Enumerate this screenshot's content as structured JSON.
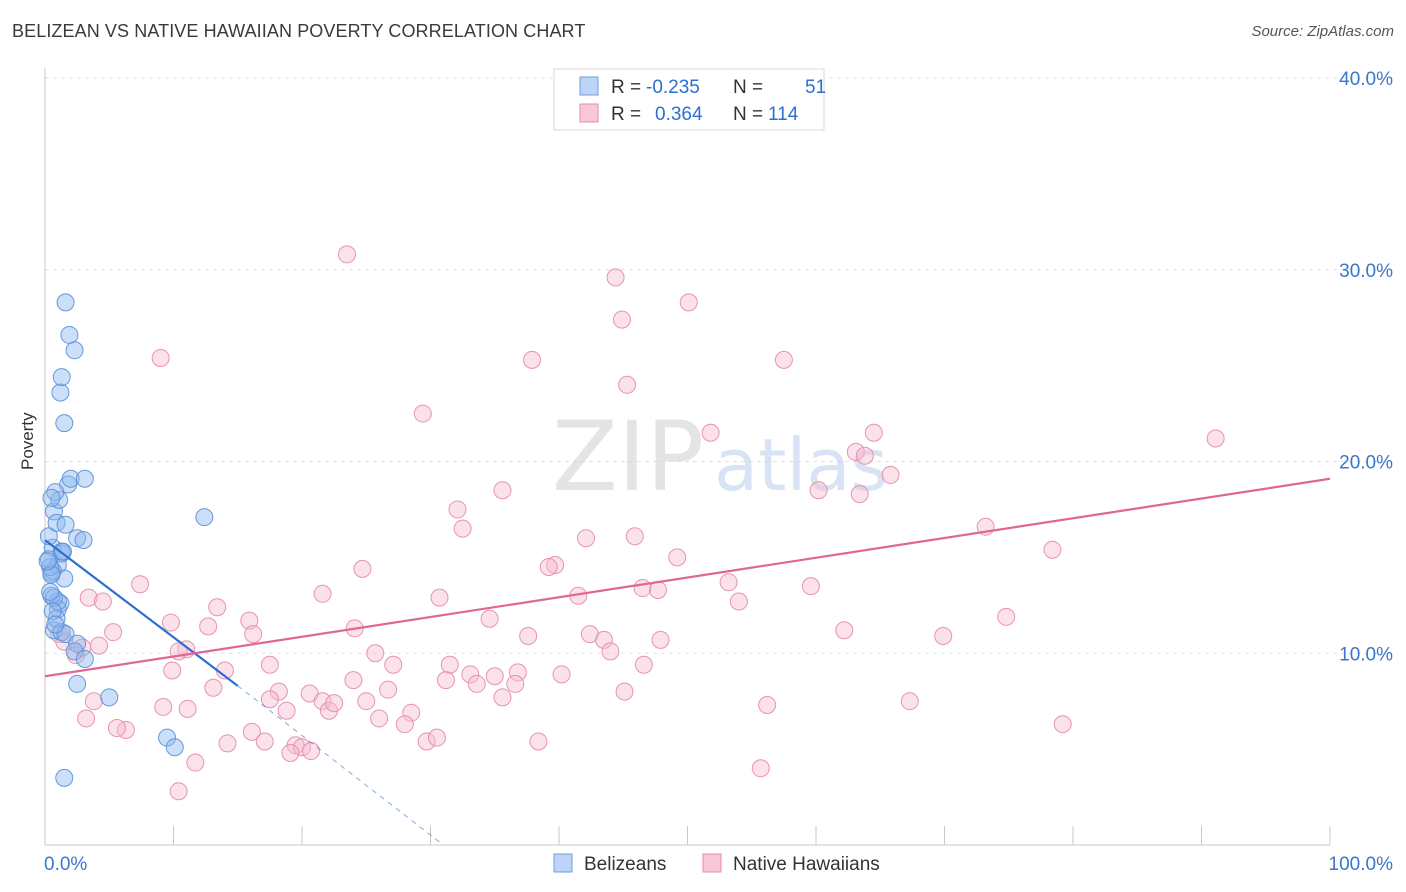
{
  "chart_data": {
    "type": "scatter",
    "title": "BELIZEAN VS NATIVE HAWAIIAN POVERTY CORRELATION CHART",
    "source": "Source: ZipAtlas.com",
    "ylabel": "Poverty",
    "xlabel": "",
    "xlim": [
      0,
      100
    ],
    "ylim": [
      0,
      40
    ],
    "x_tick_labels": [
      "0.0%",
      "100.0%"
    ],
    "y_ticks": [
      10,
      20,
      30,
      40
    ],
    "y_tick_labels": [
      "10.0%",
      "20.0%",
      "30.0%",
      "40.0%"
    ],
    "grid": true,
    "watermark": {
      "part1": "ZIP",
      "part2": "atlas"
    },
    "legend_top": [
      {
        "r_label": "R =",
        "r_value": "-0.235",
        "n_label": "N =",
        "n_value": "51"
      },
      {
        "r_label": "R =",
        "r_value": "0.364",
        "n_label": "N =",
        "n_value": "114"
      }
    ],
    "series": [
      {
        "name": "Belizeans",
        "color": "#8fb9f0",
        "stroke": "#5a8fd6",
        "line_color": "#2d6fd0",
        "trend": {
          "x0": 0,
          "y0": 15.9,
          "x1": 15,
          "y1": 8.3,
          "dash_to_x": 31,
          "dash_to_y": 0
        },
        "points": [
          [
            1.0,
            14.6
          ],
          [
            1.5,
            13.9
          ],
          [
            0.6,
            15.5
          ],
          [
            1.3,
            15.2
          ],
          [
            0.3,
            16.1
          ],
          [
            0.5,
            14.2
          ],
          [
            0.7,
            17.4
          ],
          [
            1.1,
            18.0
          ],
          [
            1.8,
            18.8
          ],
          [
            2.0,
            19.1
          ],
          [
            3.1,
            19.1
          ],
          [
            1.5,
            22.0
          ],
          [
            1.2,
            23.6
          ],
          [
            1.3,
            24.4
          ],
          [
            2.3,
            25.8
          ],
          [
            1.9,
            26.6
          ],
          [
            1.6,
            28.3
          ],
          [
            0.8,
            18.4
          ],
          [
            0.5,
            18.1
          ],
          [
            0.9,
            16.8
          ],
          [
            2.5,
            16.0
          ],
          [
            3.0,
            15.9
          ],
          [
            1.6,
            16.7
          ],
          [
            1.3,
            15.3
          ],
          [
            0.6,
            14.3
          ],
          [
            0.4,
            14.5
          ],
          [
            1.2,
            12.6
          ],
          [
            0.7,
            11.2
          ],
          [
            1.0,
            12.3
          ],
          [
            1.0,
            12.7
          ],
          [
            0.9,
            11.8
          ],
          [
            0.5,
            13.0
          ],
          [
            1.3,
            11.1
          ],
          [
            1.6,
            11.0
          ],
          [
            2.5,
            10.5
          ],
          [
            2.3,
            10.1
          ],
          [
            3.1,
            9.7
          ],
          [
            2.5,
            8.4
          ],
          [
            5.0,
            7.7
          ],
          [
            9.5,
            5.6
          ],
          [
            10.1,
            5.1
          ],
          [
            12.4,
            17.1
          ],
          [
            1.5,
            3.5
          ],
          [
            0.3,
            14.9
          ],
          [
            0.5,
            14.1
          ],
          [
            0.7,
            12.9
          ],
          [
            0.4,
            13.2
          ],
          [
            0.6,
            12.2
          ],
          [
            0.8,
            11.5
          ],
          [
            1.4,
            15.3
          ],
          [
            0.2,
            14.8
          ]
        ]
      },
      {
        "name": "Native Hawaiians",
        "color": "#f6bccf",
        "stroke": "#e48aa8",
        "line_color": "#e0669a",
        "trend": {
          "x0": 0,
          "y0": 8.8,
          "x1": 100,
          "y1": 19.1
        },
        "points": [
          [
            23.5,
            30.8
          ],
          [
            44.4,
            29.6
          ],
          [
            44.9,
            27.4
          ],
          [
            50.1,
            28.3
          ],
          [
            9.0,
            25.4
          ],
          [
            37.9,
            25.3
          ],
          [
            57.5,
            25.3
          ],
          [
            45.3,
            24.0
          ],
          [
            29.4,
            22.5
          ],
          [
            51.8,
            21.5
          ],
          [
            64.5,
            21.5
          ],
          [
            91.1,
            21.2
          ],
          [
            63.1,
            20.5
          ],
          [
            63.8,
            20.3
          ],
          [
            65.8,
            19.3
          ],
          [
            35.6,
            18.5
          ],
          [
            60.2,
            18.5
          ],
          [
            63.4,
            18.3
          ],
          [
            32.1,
            17.5
          ],
          [
            32.5,
            16.5
          ],
          [
            73.2,
            16.6
          ],
          [
            42.1,
            16.0
          ],
          [
            45.9,
            16.1
          ],
          [
            78.4,
            15.4
          ],
          [
            49.2,
            15.0
          ],
          [
            39.7,
            14.6
          ],
          [
            39.2,
            14.5
          ],
          [
            24.7,
            14.4
          ],
          [
            7.4,
            13.6
          ],
          [
            53.2,
            13.7
          ],
          [
            46.5,
            13.4
          ],
          [
            47.7,
            13.3
          ],
          [
            59.6,
            13.5
          ],
          [
            21.6,
            13.1
          ],
          [
            30.7,
            12.9
          ],
          [
            41.5,
            13.0
          ],
          [
            54.0,
            12.7
          ],
          [
            3.4,
            12.9
          ],
          [
            4.5,
            12.7
          ],
          [
            13.4,
            12.4
          ],
          [
            9.8,
            11.6
          ],
          [
            15.9,
            11.7
          ],
          [
            12.7,
            11.4
          ],
          [
            34.6,
            11.8
          ],
          [
            74.8,
            11.9
          ],
          [
            5.3,
            11.1
          ],
          [
            24.1,
            11.3
          ],
          [
            16.2,
            11.0
          ],
          [
            62.2,
            11.2
          ],
          [
            42.4,
            11.0
          ],
          [
            37.6,
            10.9
          ],
          [
            1.1,
            11.0
          ],
          [
            1.5,
            10.6
          ],
          [
            2.9,
            10.3
          ],
          [
            4.2,
            10.4
          ],
          [
            11.0,
            10.2
          ],
          [
            43.5,
            10.7
          ],
          [
            47.9,
            10.7
          ],
          [
            69.9,
            10.9
          ],
          [
            10.4,
            10.1
          ],
          [
            25.7,
            10.0
          ],
          [
            44.0,
            10.1
          ],
          [
            2.4,
            9.9
          ],
          [
            9.9,
            9.1
          ],
          [
            14.0,
            9.1
          ],
          [
            17.5,
            9.4
          ],
          [
            27.1,
            9.4
          ],
          [
            31.5,
            9.4
          ],
          [
            33.1,
            8.9
          ],
          [
            35.0,
            8.8
          ],
          [
            36.8,
            9.0
          ],
          [
            40.2,
            8.9
          ],
          [
            46.6,
            9.4
          ],
          [
            13.1,
            8.2
          ],
          [
            18.2,
            8.0
          ],
          [
            24.0,
            8.6
          ],
          [
            31.2,
            8.6
          ],
          [
            33.6,
            8.4
          ],
          [
            26.7,
            8.1
          ],
          [
            35.6,
            7.7
          ],
          [
            20.6,
            7.9
          ],
          [
            17.5,
            7.6
          ],
          [
            21.6,
            7.5
          ],
          [
            25.0,
            7.5
          ],
          [
            45.1,
            8.0
          ],
          [
            36.6,
            8.4
          ],
          [
            9.2,
            7.2
          ],
          [
            3.8,
            7.5
          ],
          [
            11.1,
            7.1
          ],
          [
            18.8,
            7.0
          ],
          [
            22.1,
            7.0
          ],
          [
            26.0,
            6.6
          ],
          [
            28.5,
            6.9
          ],
          [
            56.2,
            7.3
          ],
          [
            67.3,
            7.5
          ],
          [
            6.3,
            6.0
          ],
          [
            16.1,
            5.9
          ],
          [
            14.2,
            5.3
          ],
          [
            17.1,
            5.4
          ],
          [
            19.5,
            5.2
          ],
          [
            20.0,
            5.1
          ],
          [
            20.7,
            4.9
          ],
          [
            29.7,
            5.4
          ],
          [
            30.5,
            5.6
          ],
          [
            38.4,
            5.4
          ],
          [
            11.7,
            4.3
          ],
          [
            10.4,
            2.8
          ],
          [
            55.7,
            4.0
          ],
          [
            79.2,
            6.3
          ],
          [
            28.0,
            6.3
          ],
          [
            3.2,
            6.6
          ],
          [
            19.1,
            4.8
          ],
          [
            22.5,
            7.4
          ],
          [
            5.6,
            6.1
          ]
        ]
      }
    ]
  },
  "legend_bottom": [
    {
      "label": "Belizeans"
    },
    {
      "label": "Native Hawaiians"
    }
  ]
}
